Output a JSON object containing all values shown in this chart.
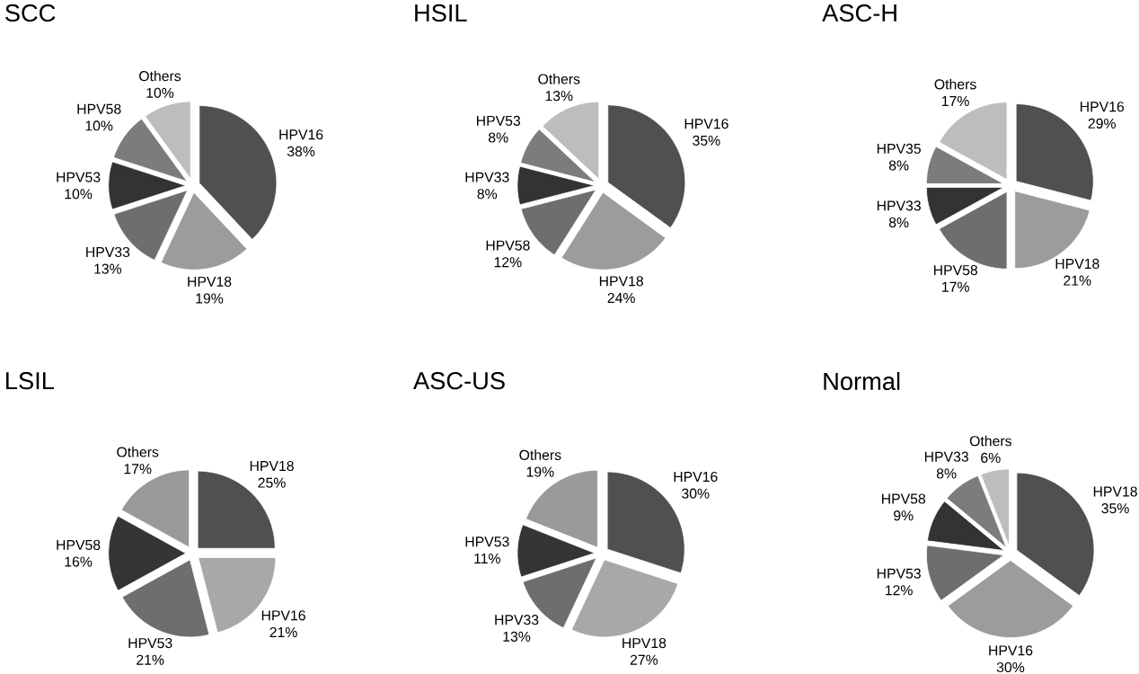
{
  "chart_data": [
    {
      "type": "pie",
      "title": "SCC",
      "categories": [
        "HPV16",
        "HPV18",
        "HPV33",
        "HPV53",
        "HPV58",
        "Others"
      ],
      "values": [
        38,
        19,
        13,
        10,
        10,
        10
      ],
      "value_labels": [
        "38%",
        "19%",
        "13%",
        "10%",
        "10%",
        "10%"
      ],
      "colors": [
        "#505050",
        "#9c9c9c",
        "#6e6e6e",
        "#333333",
        "#7c7c7c",
        "#bdbdbd"
      ]
    },
    {
      "type": "pie",
      "title": "HSIL",
      "categories": [
        "HPV16",
        "HPV18",
        "HPV58",
        "HPV33",
        "HPV53",
        "Others"
      ],
      "values": [
        35,
        24,
        12,
        8,
        8,
        13
      ],
      "value_labels": [
        "35%",
        "24%",
        "12%",
        "8%",
        "8%",
        "13%"
      ],
      "colors": [
        "#505050",
        "#9c9c9c",
        "#6e6e6e",
        "#333333",
        "#7c7c7c",
        "#bdbdbd"
      ]
    },
    {
      "type": "pie",
      "title": "ASC-H",
      "categories": [
        "HPV16",
        "HPV18",
        "HPV58",
        "HPV33",
        "HPV35",
        "Others"
      ],
      "values": [
        29,
        21,
        17,
        8,
        8,
        17
      ],
      "value_labels": [
        "29%",
        "21%",
        "17%",
        "8%",
        "8%",
        "17%"
      ],
      "colors": [
        "#505050",
        "#9c9c9c",
        "#6e6e6e",
        "#333333",
        "#7c7c7c",
        "#bdbdbd"
      ]
    },
    {
      "type": "pie",
      "title": "LSIL",
      "categories": [
        "HPV18",
        "HPV16",
        "HPV53",
        "HPV58",
        "Others"
      ],
      "values": [
        25,
        21,
        21,
        16,
        17
      ],
      "value_labels": [
        "25%",
        "21%",
        "21%",
        "16%",
        "17%"
      ],
      "colors": [
        "#505050",
        "#a8a8a8",
        "#6e6e6e",
        "#353535",
        "#9a9a9a"
      ]
    },
    {
      "type": "pie",
      "title": "ASC-US",
      "categories": [
        "HPV16",
        "HPV18",
        "HPV33",
        "HPV53",
        "Others"
      ],
      "values": [
        30,
        27,
        13,
        11,
        19
      ],
      "value_labels": [
        "30%",
        "27%",
        "13%",
        "11%",
        "19%"
      ],
      "colors": [
        "#505050",
        "#a8a8a8",
        "#6e6e6e",
        "#353535",
        "#9a9a9a"
      ]
    },
    {
      "type": "pie",
      "title": "Normal",
      "categories": [
        "HPV18",
        "HPV16",
        "HPV53",
        "HPV58",
        "HPV33",
        "Others"
      ],
      "values": [
        35,
        30,
        12,
        9,
        8,
        6
      ],
      "value_labels": [
        "35%",
        "30%",
        "12%",
        "9%",
        "8%",
        "6%"
      ],
      "colors": [
        "#505050",
        "#9c9c9c",
        "#6e6e6e",
        "#333333",
        "#7c7c7c",
        "#bdbdbd"
      ]
    }
  ]
}
